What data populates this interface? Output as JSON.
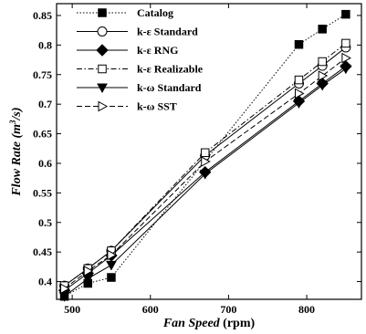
{
  "chart_data": {
    "type": "line",
    "xlabel": {
      "italic": "Fan Speed",
      "plain": " (rpm)"
    },
    "ylabel": {
      "italic": "Flow Rate",
      "unit_open": " (m",
      "sup": "3",
      "unit_close": "/s)"
    },
    "xlim": [
      480,
      870
    ],
    "ylim": [
      0.37,
      0.87
    ],
    "xticks": [
      500,
      600,
      700,
      800
    ],
    "yticks": [
      0.4,
      0.45,
      0.5,
      0.55,
      0.6,
      0.65,
      0.7,
      0.75,
      0.8,
      0.85
    ],
    "legend_position": "top-left",
    "grid": false,
    "series": [
      {
        "name": "Catalog",
        "marker": "filled-square",
        "dash": "dotted",
        "x": [
          490,
          520,
          550,
          790,
          820,
          850
        ],
        "y": [
          0.375,
          0.397,
          0.407,
          0.801,
          0.827,
          0.852
        ]
      },
      {
        "name": "k-ε Standard",
        "marker": "open-circle",
        "dash": "solid",
        "x": [
          490,
          520,
          550,
          670,
          790,
          820,
          850
        ],
        "y": [
          0.393,
          0.422,
          0.452,
          0.613,
          0.735,
          0.765,
          0.796
        ]
      },
      {
        "name": "k-ε RNG",
        "marker": "filled-diamond",
        "dash": "solid",
        "x": [
          490,
          520,
          550,
          670,
          790,
          820,
          850
        ],
        "y": [
          0.385,
          0.414,
          0.444,
          0.585,
          0.705,
          0.735,
          0.764
        ]
      },
      {
        "name": "k-ε Realizable",
        "marker": "open-square",
        "dash": "dashdot",
        "x": [
          490,
          520,
          550,
          670,
          790,
          820,
          850
        ],
        "y": [
          0.393,
          0.422,
          0.452,
          0.618,
          0.741,
          0.772,
          0.803
        ]
      },
      {
        "name": "k-ω Standard",
        "marker": "filled-triangle-down",
        "dash": "solid",
        "x": [
          490,
          520,
          550,
          670,
          790,
          820,
          850
        ],
        "y": [
          0.375,
          0.405,
          0.428,
          0.582,
          0.702,
          0.732,
          0.76
        ]
      },
      {
        "name": "k-ω SST",
        "marker": "open-triangle-right",
        "dash": "dashed",
        "x": [
          490,
          520,
          550,
          670,
          790,
          820,
          850
        ],
        "y": [
          0.388,
          0.418,
          0.445,
          0.603,
          0.718,
          0.748,
          0.778
        ]
      }
    ]
  }
}
